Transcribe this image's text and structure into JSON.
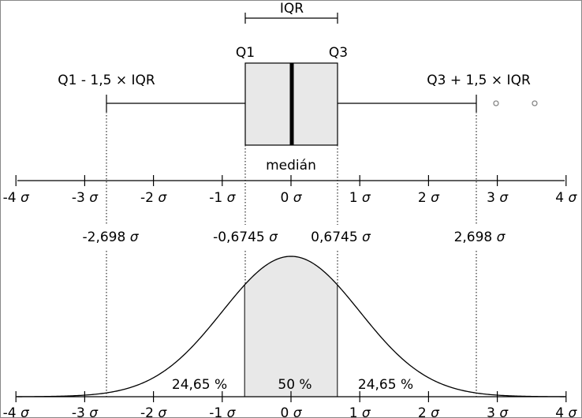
{
  "iqr_label": "IQR",
  "q1_label": "Q1",
  "q3_label": "Q3",
  "lower_whisker_label": "Q1 - 1,5 × IQR",
  "upper_whisker_label": "Q3 + 1,5 × IQR",
  "median_label": "medián",
  "sigma_symbol": "σ",
  "axis_ticks": [
    "-4",
    "-3",
    "-2",
    "-1",
    "0",
    "1",
    "2",
    "3",
    "4"
  ],
  "quantile_labels": [
    "-2,698",
    "-0,6745",
    "0,6745",
    "2,698"
  ],
  "area_labels": [
    "24,65 %",
    "50 %",
    "24,65 %"
  ],
  "colors": {
    "box_fill": "#e8e8e8",
    "stroke": "#000000",
    "outlier": "#888888"
  },
  "chart_data": {
    "type": "boxplot-with-normal-density",
    "axis_range_sigma": [
      -4,
      4
    ],
    "boxplot": {
      "q1": -0.6745,
      "median": 0,
      "q3": 0.6745,
      "whisker_low": -2.698,
      "whisker_high": 2.698,
      "outliers": [
        2.98,
        3.55
      ]
    },
    "density": {
      "distribution": "normal",
      "mean": 0,
      "sd": 1,
      "shaded_range": [
        -0.6745,
        0.6745
      ]
    },
    "area_fractions": [
      0.2465,
      0.5,
      0.2465
    ]
  }
}
